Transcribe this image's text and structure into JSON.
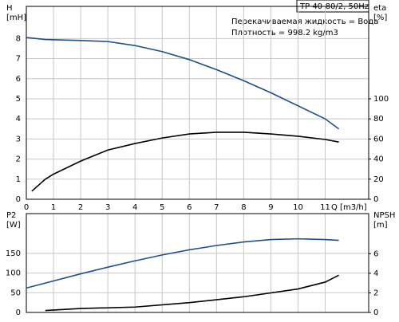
{
  "chart_data": [
    {
      "type": "line",
      "title": "TP 40-80/2, 50Hz",
      "annotations": [
        "Перекачиваемая жидкость = Вода",
        "Плотность = 998.2 kg/m3"
      ],
      "ylabel": "H",
      "yunit": "[mH]",
      "y2label": "eta",
      "y2unit": "[%]",
      "xlabel": "Q [m3/h]",
      "xlim": [
        0,
        12.6
      ],
      "xticks": [
        0,
        1,
        2,
        3,
        4,
        5,
        6,
        7,
        8,
        9,
        10,
        11
      ],
      "ylim": [
        0,
        9.6
      ],
      "yticks": [
        0,
        1,
        2,
        3,
        4,
        5,
        6,
        7,
        8
      ],
      "y2lim": [
        0,
        192
      ],
      "y2ticks": [
        0,
        20,
        40,
        60,
        80,
        100
      ],
      "grid": true,
      "series": [
        {
          "name": "H",
          "color": "#1f4e8c",
          "x": [
            0,
            0.7,
            2,
            3,
            4,
            5,
            6,
            7,
            8,
            9,
            10,
            11,
            11.5
          ],
          "values": [
            8.05,
            7.95,
            7.9,
            7.85,
            7.65,
            7.35,
            6.95,
            6.45,
            5.9,
            5.3,
            4.65,
            4.0,
            3.5
          ]
        },
        {
          "name": "eta",
          "color": "#000000",
          "axis": "y2",
          "x": [
            0.2,
            0.7,
            1,
            2,
            3,
            4,
            5,
            6,
            7,
            8,
            9,
            10,
            11,
            11.5
          ],
          "values": [
            8,
            20,
            25,
            38,
            49,
            55.5,
            61,
            65,
            66.7,
            66.7,
            65,
            62.7,
            59.5,
            57
          ]
        }
      ]
    },
    {
      "type": "line",
      "ylabel": "P2",
      "yunit": "[W]",
      "y2label": "NPSH",
      "y2unit": "[m]",
      "xlim": [
        0,
        12.6
      ],
      "ylim": [
        0,
        251
      ],
      "yticks": [
        0,
        50,
        100,
        150
      ],
      "y2lim": [
        0,
        10.1
      ],
      "y2ticks": [
        0,
        2,
        4,
        6
      ],
      "grid": true,
      "series": [
        {
          "name": "P2",
          "color": "#1f4e8c",
          "x": [
            0,
            1,
            2,
            3,
            4,
            5,
            6,
            7,
            8,
            9,
            10,
            11,
            11.5
          ],
          "values": [
            62,
            80,
            98,
            115,
            131,
            146,
            159,
            170,
            179,
            185,
            187,
            185,
            183
          ]
        },
        {
          "name": "NPSH",
          "color": "#000000",
          "axis": "y2",
          "x": [
            0.7,
            2,
            4,
            6,
            8,
            10,
            11,
            11.5
          ],
          "values": [
            0.2,
            0.4,
            0.55,
            1.0,
            1.6,
            2.4,
            3.1,
            3.8
          ]
        }
      ]
    }
  ]
}
